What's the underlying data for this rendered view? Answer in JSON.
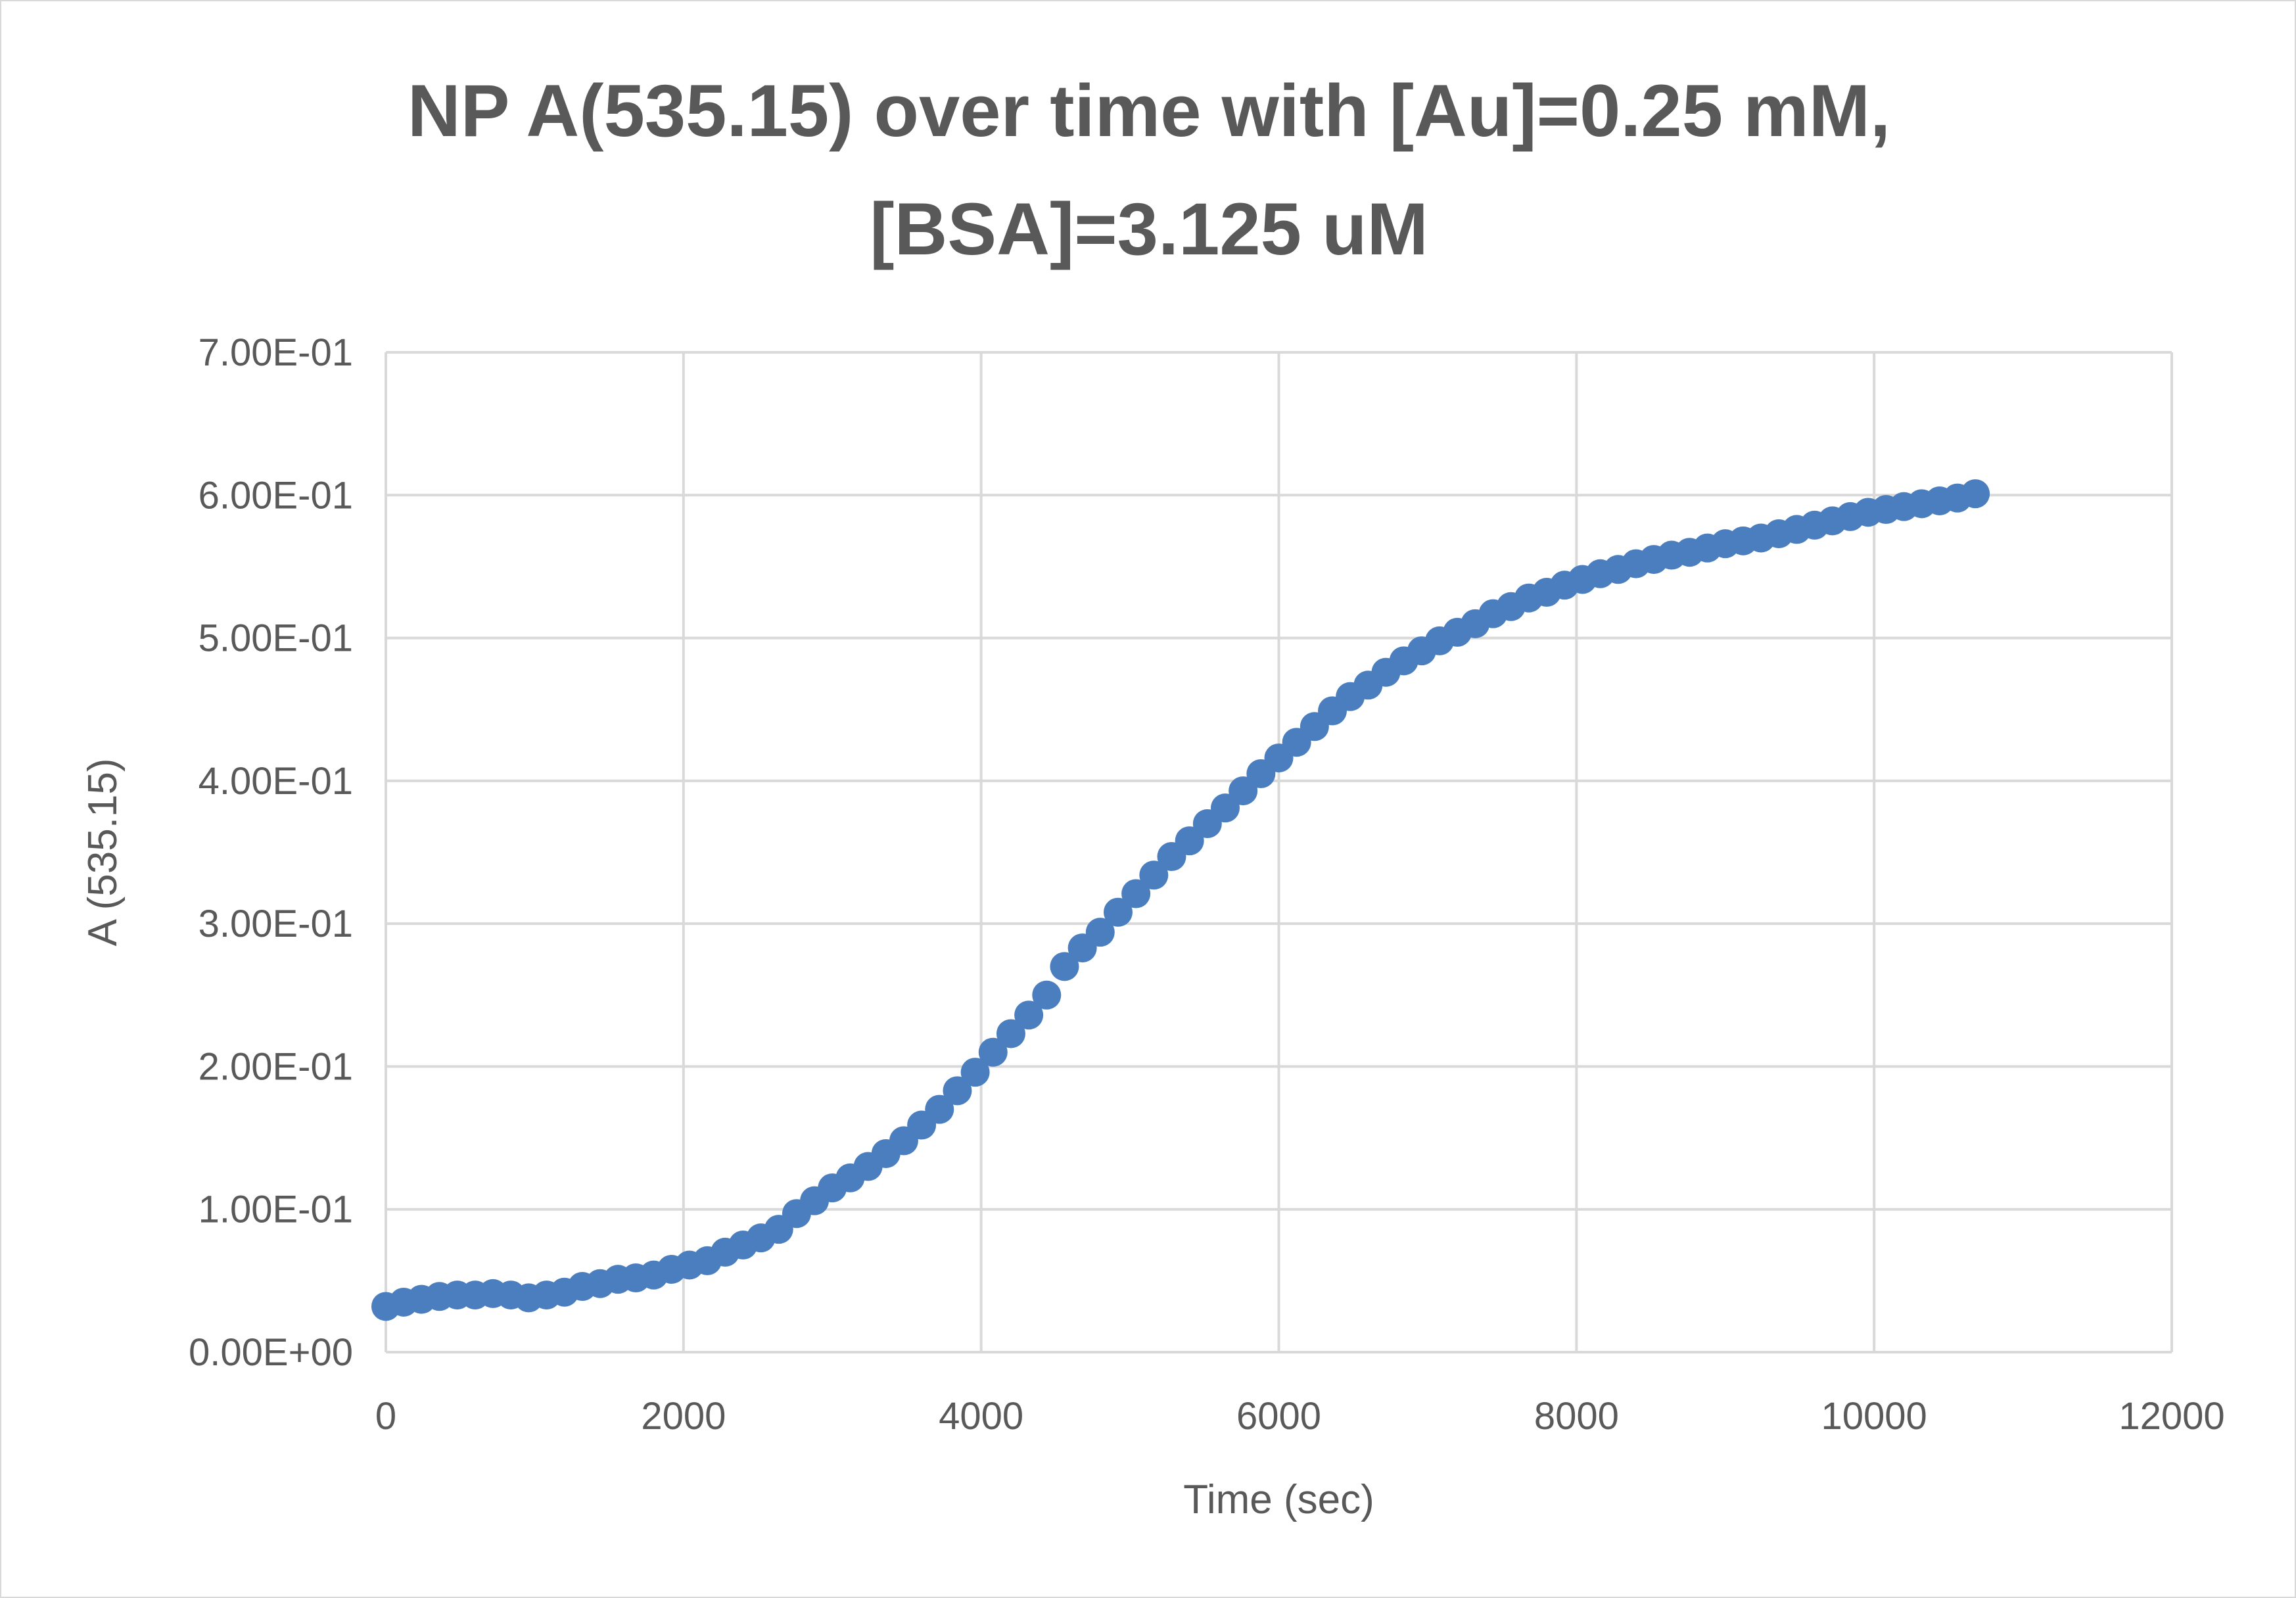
{
  "chart_data": {
    "type": "scatter",
    "title_lines": [
      "NP A(535.15) over time with [Au]=0.25 mM,",
      "[BSA]=3.125 uM"
    ],
    "xlabel": "Time (sec)",
    "ylabel": "A (535.15)",
    "xlim": [
      0,
      12000
    ],
    "ylim": [
      0,
      0.7
    ],
    "x_ticks": [
      0,
      2000,
      4000,
      6000,
      8000,
      10000,
      12000
    ],
    "x_tick_labels": [
      "0",
      "2000",
      "4000",
      "6000",
      "8000",
      "10000",
      "12000"
    ],
    "y_ticks": [
      0,
      0.1,
      0.2,
      0.3,
      0.4,
      0.5,
      0.6,
      0.7
    ],
    "y_tick_labels": [
      "0.00E+00",
      "1.00E-01",
      "2.00E-01",
      "3.00E-01",
      "4.00E-01",
      "5.00E-01",
      "6.00E-01",
      "7.00E-01"
    ],
    "grid": true,
    "legend": "none",
    "marker_color": "#4a7ebf",
    "series": [
      {
        "x": [
          0,
          120,
          240,
          360,
          480,
          600,
          720,
          840,
          960,
          1080,
          1200,
          1320,
          1440,
          1560,
          1680,
          1800,
          1920,
          2040,
          2160,
          2280,
          2400,
          2520,
          2640,
          2760,
          2880,
          3000,
          3120,
          3240,
          3360,
          3480,
          3600,
          3720,
          3840,
          3960,
          4080,
          4200,
          4320,
          4440,
          4560,
          4680,
          4800,
          4920,
          5040,
          5160,
          5280,
          5400,
          5520,
          5640,
          5760,
          5880,
          6000,
          6120,
          6240,
          6360,
          6480,
          6600,
          6720,
          6840,
          6960,
          7080,
          7200,
          7320,
          7440,
          7560,
          7680,
          7800,
          7920,
          8040,
          8160,
          8280,
          8400,
          8520,
          8640,
          8760,
          8880,
          9000,
          9120,
          9240,
          9360,
          9480,
          9600,
          9720,
          9840,
          9960,
          10080,
          10200,
          10320,
          10440,
          10560,
          10680
        ],
        "y": [
          0.032,
          0.035,
          0.037,
          0.039,
          0.04,
          0.04,
          0.041,
          0.04,
          0.038,
          0.04,
          0.042,
          0.046,
          0.048,
          0.051,
          0.052,
          0.054,
          0.058,
          0.061,
          0.064,
          0.07,
          0.075,
          0.08,
          0.086,
          0.097,
          0.106,
          0.115,
          0.122,
          0.13,
          0.139,
          0.148,
          0.159,
          0.17,
          0.183,
          0.196,
          0.21,
          0.223,
          0.236,
          0.25,
          0.27,
          0.283,
          0.294,
          0.308,
          0.321,
          0.334,
          0.347,
          0.358,
          0.37,
          0.381,
          0.393,
          0.405,
          0.416,
          0.427,
          0.438,
          0.449,
          0.459,
          0.467,
          0.476,
          0.484,
          0.491,
          0.498,
          0.504,
          0.51,
          0.517,
          0.522,
          0.528,
          0.532,
          0.537,
          0.541,
          0.545,
          0.548,
          0.552,
          0.555,
          0.558,
          0.56,
          0.563,
          0.566,
          0.568,
          0.57,
          0.573,
          0.576,
          0.579,
          0.582,
          0.585,
          0.588,
          0.59,
          0.592,
          0.594,
          0.596,
          0.598,
          0.601
        ]
      }
    ]
  }
}
